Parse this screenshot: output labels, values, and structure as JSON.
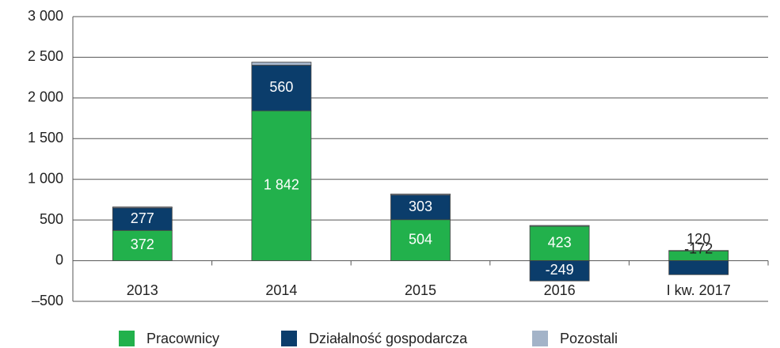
{
  "chart_data": {
    "type": "stacked_bar",
    "categories": [
      "2013",
      "2014",
      "2015",
      "2016",
      "I kw. 2017"
    ],
    "series": [
      {
        "name": "Pracownicy",
        "color": "#22b14c",
        "values": [
          372,
          1842,
          504,
          423,
          120
        ],
        "value_labels": [
          "372",
          "1 842",
          "504",
          "423",
          "120"
        ]
      },
      {
        "name": "Działalność gospodarcza",
        "color": "#0b3d6b",
        "values": [
          277,
          560,
          303,
          -249,
          -172
        ]
      },
      {
        "name": "Pozostali",
        "color": "#a3b3c8",
        "values": [
          11,
          38,
          13,
          10,
          5
        ]
      }
    ],
    "ylim": [
      -500,
      3000
    ],
    "yticks": [
      {
        "value": -500,
        "label": "–500"
      },
      0,
      500,
      {
        "value": 1000,
        "label": "1 000"
      },
      {
        "value": 1500,
        "label": "1 500"
      },
      {
        "value": 2000,
        "label": "2 000"
      },
      {
        "value": 2500,
        "label": "2 500"
      },
      {
        "value": 3000,
        "label": "3 000"
      }
    ],
    "grid": true,
    "legend": "bottom"
  }
}
